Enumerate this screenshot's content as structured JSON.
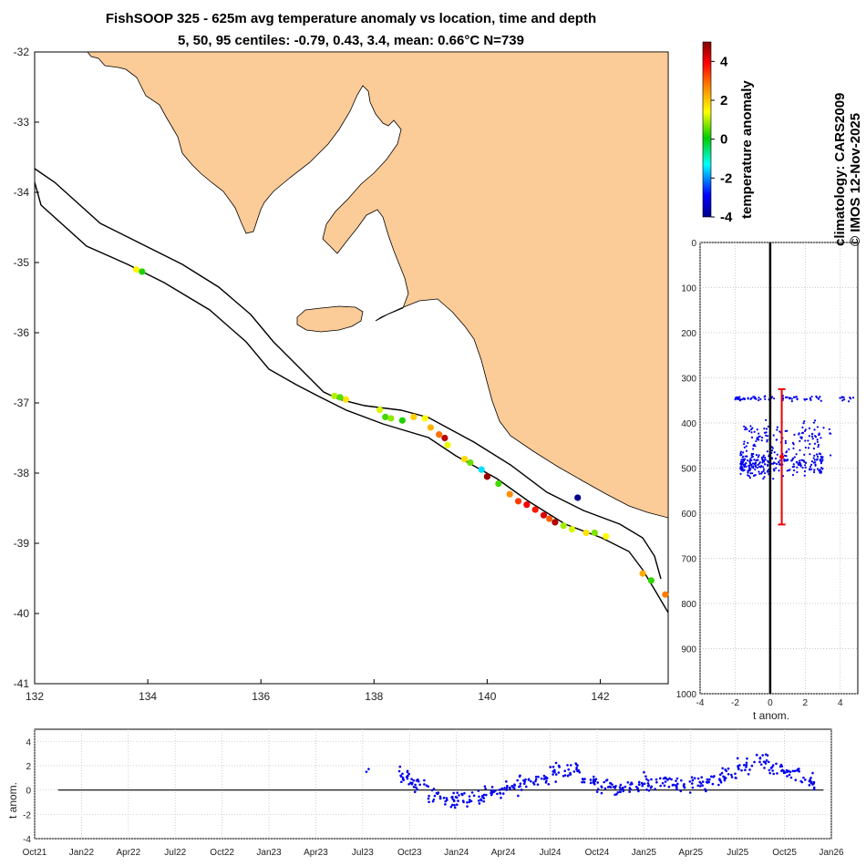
{
  "title": {
    "line1": "FishSOOP 325 - 625m avg temperature anomaly vs location, time and depth",
    "line2": "5, 50, 95 centiles: -0.79, 0.43, 3.4, mean: 0.66°C N=739"
  },
  "side_text": {
    "climatology": "climatology: CARS2009",
    "copyright": "© IMOS 12-Nov-2025"
  },
  "colors": {
    "land": "#fbcb98",
    "dots": "#0000ee",
    "errorbar": "#ee0000"
  },
  "chart_data": [
    {
      "type": "scatter",
      "name": "map",
      "xlim": [
        132,
        143.2
      ],
      "ylim": [
        -41,
        -32
      ],
      "xticks": [
        "132",
        "134",
        "136",
        "138",
        "140",
        "142"
      ],
      "yticks": [
        "-32",
        "-33",
        "-34",
        "-35",
        "-36",
        "-37",
        "-38",
        "-39",
        "-40",
        "-41"
      ],
      "points": [
        {
          "lon": 133.8,
          "lat": -35.1,
          "anom": 1.5
        },
        {
          "lon": 133.9,
          "lat": -35.13,
          "anom": 0.2
        },
        {
          "lon": 137.3,
          "lat": -36.9,
          "anom": 1.0
        },
        {
          "lon": 137.5,
          "lat": -36.95,
          "anom": 1.7
        },
        {
          "lon": 137.4,
          "lat": -36.92,
          "anom": 0.5
        },
        {
          "lon": 138.1,
          "lat": -37.1,
          "anom": 1.2
        },
        {
          "lon": 138.2,
          "lat": -37.2,
          "anom": 0.4
        },
        {
          "lon": 138.3,
          "lat": -37.22,
          "anom": 0.8
        },
        {
          "lon": 138.5,
          "lat": -37.25,
          "anom": 0.2
        },
        {
          "lon": 138.7,
          "lat": -37.2,
          "anom": 1.9
        },
        {
          "lon": 138.9,
          "lat": -37.22,
          "anom": 1.4
        },
        {
          "lon": 139.0,
          "lat": -37.35,
          "anom": 2.2
        },
        {
          "lon": 139.15,
          "lat": -37.45,
          "anom": 2.9
        },
        {
          "lon": 139.25,
          "lat": -37.5,
          "anom": 4.5
        },
        {
          "lon": 139.3,
          "lat": -37.6,
          "anom": 1.3
        },
        {
          "lon": 139.6,
          "lat": -37.8,
          "anom": 1.8
        },
        {
          "lon": 139.7,
          "lat": -37.85,
          "anom": 0.6
        },
        {
          "lon": 139.9,
          "lat": -37.95,
          "anom": -1.5
        },
        {
          "lon": 140.0,
          "lat": -38.05,
          "anom": 4.8
        },
        {
          "lon": 140.2,
          "lat": -38.15,
          "anom": 0.4
        },
        {
          "lon": 140.4,
          "lat": -38.3,
          "anom": 2.6
        },
        {
          "lon": 140.55,
          "lat": -38.4,
          "anom": 3.4
        },
        {
          "lon": 140.7,
          "lat": -38.45,
          "anom": 4.0
        },
        {
          "lon": 140.85,
          "lat": -38.52,
          "anom": 3.7
        },
        {
          "lon": 141.0,
          "lat": -38.6,
          "anom": 4.2
        },
        {
          "lon": 141.1,
          "lat": -38.65,
          "anom": 3.1
        },
        {
          "lon": 141.2,
          "lat": -38.7,
          "anom": 4.6
        },
        {
          "lon": 141.35,
          "lat": -38.75,
          "anom": 0.9
        },
        {
          "lon": 141.5,
          "lat": -38.8,
          "anom": 1.2
        },
        {
          "lon": 141.6,
          "lat": -38.35,
          "anom": -4.0
        },
        {
          "lon": 141.75,
          "lat": -38.85,
          "anom": 1.7
        },
        {
          "lon": 141.9,
          "lat": -38.85,
          "anom": 0.7
        },
        {
          "lon": 142.1,
          "lat": -38.9,
          "anom": 1.4
        },
        {
          "lon": 142.75,
          "lat": -39.43,
          "anom": 2.3
        },
        {
          "lon": 142.9,
          "lat": -39.53,
          "anom": 0.3
        },
        {
          "lon": 143.15,
          "lat": -39.73,
          "anom": 2.8
        }
      ]
    },
    {
      "type": "colorbar",
      "name": "colorbar",
      "label": "temperature anomaly",
      "range": [
        -4,
        5
      ],
      "ticks": [
        "4",
        "2",
        "0",
        "-2",
        "-4"
      ]
    },
    {
      "type": "scatter",
      "name": "depth-profile",
      "xlabel": "t anom.",
      "xlim": [
        -4,
        5
      ],
      "ylim": [
        0,
        1000
      ],
      "xticks": [
        "-4",
        "-2",
        "0",
        "2",
        "4"
      ],
      "yticks": [
        "0",
        "100",
        "200",
        "300",
        "400",
        "500",
        "600",
        "700",
        "800",
        "900",
        "1000"
      ],
      "errorbar": {
        "x": 0.66,
        "depth_min": 325,
        "depth_max": 625,
        "depth_mid": 475
      },
      "clusters": [
        {
          "depth": 345,
          "spread": 6,
          "x_min": -2.0,
          "x_max": 4.8,
          "n": 85
        },
        {
          "depth": 430,
          "spread": 35,
          "x_min": -1.5,
          "x_max": 3.5,
          "n": 110
        },
        {
          "depth": 490,
          "spread": 30,
          "x_min": -1.7,
          "x_max": 3.0,
          "n": 260
        }
      ]
    },
    {
      "type": "scatter",
      "name": "time-series",
      "ylabel": "t anom.",
      "ylim": [
        -4,
        5
      ],
      "yticks": [
        "4",
        "2",
        "0",
        "-2",
        "-4"
      ],
      "xticks": [
        "Oct21",
        "Jan22",
        "Apr22",
        "Jul22",
        "Oct22",
        "Jan23",
        "Apr23",
        "Jul23",
        "Oct23",
        "Jan24",
        "Apr24",
        "Jul24",
        "Oct24",
        "Jan25",
        "Apr25",
        "Jul25",
        "Oct25",
        "Jan26"
      ],
      "x_range_months": [
        0,
        51
      ],
      "trend": [
        {
          "month": 21.5,
          "anom": 1.7
        },
        {
          "month": 23.5,
          "anom": 1.2
        },
        {
          "month": 24.5,
          "anom": 0.6
        },
        {
          "month": 25.5,
          "anom": -0.3
        },
        {
          "month": 26.5,
          "anom": -1.0
        },
        {
          "month": 27.5,
          "anom": -0.8
        },
        {
          "month": 28.5,
          "anom": -0.4
        },
        {
          "month": 29.5,
          "anom": -0.2
        },
        {
          "month": 30.5,
          "anom": 0.3
        },
        {
          "month": 31.5,
          "anom": 0.6
        },
        {
          "month": 32.5,
          "anom": 0.9
        },
        {
          "month": 33.5,
          "anom": 1.6
        },
        {
          "month": 34.5,
          "anom": 1.7
        },
        {
          "month": 35.5,
          "anom": 0.8
        },
        {
          "month": 36.5,
          "anom": 0.4
        },
        {
          "month": 37.5,
          "anom": 0.1
        },
        {
          "month": 38.5,
          "anom": 0.2
        },
        {
          "month": 39.5,
          "anom": 0.6
        },
        {
          "month": 40.5,
          "anom": 0.7
        },
        {
          "month": 41.5,
          "anom": 0.4
        },
        {
          "month": 42.5,
          "anom": 0.6
        },
        {
          "month": 43.5,
          "anom": 0.9
        },
        {
          "month": 44.5,
          "anom": 1.3
        },
        {
          "month": 45.5,
          "anom": 2.0
        },
        {
          "month": 46.5,
          "anom": 2.5
        },
        {
          "month": 47.5,
          "anom": 1.8
        },
        {
          "month": 48.5,
          "anom": 1.5
        },
        {
          "month": 49.5,
          "anom": 0.6
        }
      ]
    }
  ]
}
